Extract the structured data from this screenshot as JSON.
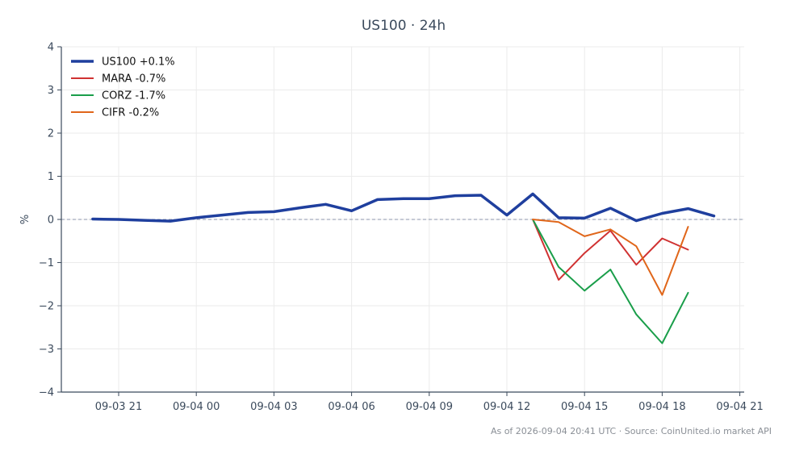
{
  "chart_data": {
    "type": "line",
    "title": "US100 · 24h",
    "ylabel": "%",
    "xlabel": "",
    "ylim": [
      -4,
      4
    ],
    "yticks": [
      -4,
      -3,
      -2,
      -1,
      0,
      1,
      2,
      3,
      4
    ],
    "ytick_labels": [
      "−4",
      "−3",
      "−2",
      "−1",
      "0",
      "1",
      "2",
      "3",
      "4"
    ],
    "xlim": [
      -3.8,
      21.3
    ],
    "xticks": [
      0,
      3,
      6,
      9,
      12,
      15,
      18,
      21,
      24
    ],
    "xtick_labels": [
      "09-03 21",
      "09-04 00",
      "09-04 03",
      "09-04 06",
      "09-04 09",
      "09-04 12",
      "09-04 15",
      "09-04 18",
      "09-04 21"
    ],
    "x_unit_note": "",
    "grid": true,
    "zero_line": true,
    "legend_position": "top-left",
    "footer": "As of 2026-09-04 20:41 UTC · Source: CoinUnited.io market API",
    "series": [
      {
        "name": "US100 +0.1%",
        "color": "#1f3f9e",
        "points": [
          [
            "09-03 20",
            0.01
          ],
          [
            "09-03 21",
            0.0
          ],
          [
            "09-03 22",
            -0.02
          ],
          [
            "09-03 23",
            -0.04
          ],
          [
            "09-04 00",
            0.04
          ],
          [
            "09-04 01",
            0.1
          ],
          [
            "09-04 02",
            0.16
          ],
          [
            "09-04 03",
            0.18
          ],
          [
            "09-04 04",
            0.27
          ],
          [
            "09-04 05",
            0.35
          ],
          [
            "09-04 06",
            0.2
          ],
          [
            "09-04 07",
            0.46
          ],
          [
            "09-04 08",
            0.48
          ],
          [
            "09-04 09",
            0.48
          ],
          [
            "09-04 10",
            0.55
          ],
          [
            "09-04 11",
            0.56
          ],
          [
            "09-04 12",
            0.1
          ],
          [
            "09-04 13",
            0.59
          ],
          [
            "09-04 14",
            0.04
          ],
          [
            "09-04 15",
            0.03
          ],
          [
            "09-04 16",
            0.26
          ],
          [
            "09-04 17",
            -0.03
          ],
          [
            "09-04 18",
            0.14
          ],
          [
            "09-04 19",
            0.25
          ],
          [
            "09-04 20",
            0.08
          ]
        ]
      },
      {
        "name": "MARA -0.7%",
        "color": "#d03232",
        "points": [
          [
            "09-04 13",
            0.0
          ],
          [
            "09-04 14",
            -1.4
          ],
          [
            "09-04 15",
            -0.78
          ],
          [
            "09-04 16",
            -0.26
          ],
          [
            "09-04 17",
            -1.05
          ],
          [
            "09-04 18",
            -0.44
          ],
          [
            "09-04 19",
            -0.7
          ]
        ]
      },
      {
        "name": "CORZ -1.7%",
        "color": "#1a9e4a",
        "points": [
          [
            "09-04 13",
            0.0
          ],
          [
            "09-04 14",
            -1.1
          ],
          [
            "09-04 15",
            -1.65
          ],
          [
            "09-04 16",
            -1.16
          ],
          [
            "09-04 17",
            -2.2
          ],
          [
            "09-04 18",
            -2.87
          ],
          [
            "09-04 19",
            -1.7
          ]
        ]
      },
      {
        "name": "CIFR -0.2%",
        "color": "#e0661a",
        "points": [
          [
            "09-04 13",
            0.0
          ],
          [
            "09-04 14",
            -0.06
          ],
          [
            "09-04 15",
            -0.39
          ],
          [
            "09-04 16",
            -0.23
          ],
          [
            "09-04 17",
            -0.62
          ],
          [
            "09-04 18",
            -1.75
          ],
          [
            "09-04 19",
            -0.17
          ]
        ]
      }
    ]
  },
  "style": {
    "axis_color": "#3b4a5c",
    "grid_color": "#ebebeb",
    "zero_line_color": "#8c96ad"
  }
}
